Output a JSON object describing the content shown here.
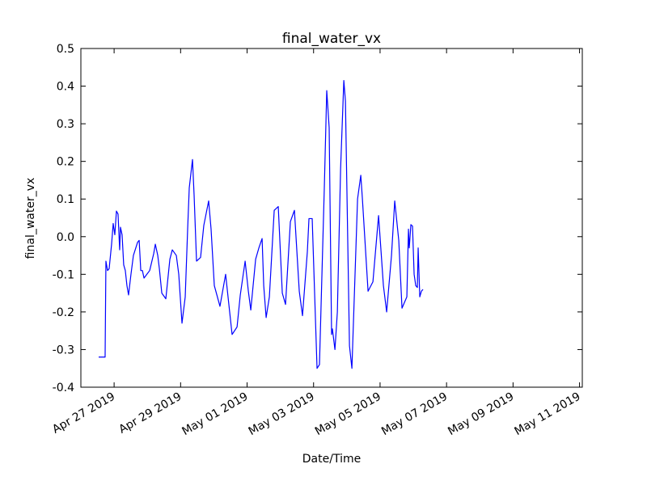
{
  "chart_data": {
    "type": "line",
    "title": "final_water_vx",
    "xlabel": "Date/Time",
    "ylabel": "final_water_vx",
    "color": "#0000ff",
    "x": [
      "2019-04-26 12:50",
      "2019-04-26 17:30",
      "2019-04-26 18:05",
      "2019-04-26 19:15",
      "2019-04-26 20:25",
      "2019-04-26 22:10",
      "2019-04-26 23:20",
      "2019-04-27 00:30",
      "2019-04-27 01:40",
      "2019-04-27 02:50",
      "2019-04-27 04:00",
      "2019-04-27 04:35",
      "2019-04-27 05:45",
      "2019-04-27 06:55",
      "2019-04-27 08:05",
      "2019-04-27 09:15",
      "2019-04-27 10:25",
      "2019-04-27 12:10",
      "2019-04-27 13:55",
      "2019-04-27 16:55",
      "2019-04-27 18:05",
      "2019-04-27 19:15",
      "2019-04-27 20:25",
      "2019-04-27 21:35",
      "2019-04-28 01:40",
      "2019-04-28 04:35",
      "2019-04-28 05:45",
      "2019-04-28 07:30",
      "2019-04-28 08:40",
      "2019-04-28 10:25",
      "2019-04-28 13:20",
      "2019-04-28 16:15",
      "2019-04-28 18:00",
      "2019-04-28 20:55",
      "2019-04-28 22:40",
      "2019-04-29 01:00",
      "2019-04-29 03:20",
      "2019-04-29 05:05",
      "2019-04-29 06:15",
      "2019-04-29 08:35",
      "2019-04-29 09:45",
      "2019-04-29 11:30",
      "2019-04-29 14:25",
      "2019-04-29 16:45",
      "2019-04-29 20:15",
      "2019-04-29 22:00",
      "2019-04-30 00:20",
      "2019-04-30 04:25",
      "2019-04-30 08:30",
      "2019-04-30 10:50",
      "2019-04-30 13:10",
      "2019-04-30 16:45",
      "2019-04-30 19:05",
      "2019-04-30 22:35",
      "2019-05-01 00:55",
      "2019-05-01 02:40",
      "2019-05-01 06:10",
      "2019-05-01 08:30",
      "2019-05-01 10:50",
      "2019-05-01 12:00",
      "2019-05-01 13:45",
      "2019-05-01 16:05",
      "2019-05-01 19:35",
      "2019-05-01 22:30",
      "2019-05-02 01:25",
      "2019-05-02 03:45",
      "2019-05-02 07:15",
      "2019-05-02 10:10",
      "2019-05-02 13:40",
      "2019-05-02 16:00",
      "2019-05-02 19:30",
      "2019-05-02 20:40",
      "2019-05-02 23:00",
      "2019-05-03 02:30",
      "2019-05-03 04:15",
      "2019-05-03 07:45",
      "2019-05-03 09:30",
      "2019-05-03 11:15",
      "2019-05-03 13:00",
      "2019-05-03 13:35",
      "2019-05-03 15:25",
      "2019-05-03 17:10",
      "2019-05-03 19:30",
      "2019-05-03 21:50",
      "2019-05-03 23:00",
      "2019-05-04 01:55",
      "2019-05-04 03:40",
      "2019-05-04 07:45",
      "2019-05-04 10:05",
      "2019-05-04 11:15",
      "2019-05-04 15:20",
      "2019-05-04 18:50",
      "2019-05-04 22:55",
      "2019-05-05 02:25",
      "2019-05-05 04:45",
      "2019-05-05 08:15",
      "2019-05-05 10:35",
      "2019-05-05 13:30",
      "2019-05-05 15:50",
      "2019-05-05 19:20",
      "2019-05-05 20:30",
      "2019-05-05 21:05",
      "2019-05-05 22:15",
      "2019-05-05 23:25",
      "2019-05-06 00:35",
      "2019-05-06 01:45",
      "2019-05-06 02:55",
      "2019-05-06 03:30",
      "2019-05-06 04:40",
      "2019-05-06 05:50",
      "2019-05-06 07:00"
    ],
    "values": [
      -0.32,
      -0.32,
      -0.065,
      -0.09,
      -0.085,
      -0.02,
      0.035,
      0.005,
      0.068,
      0.06,
      -0.035,
      0.025,
      0.005,
      -0.075,
      -0.09,
      -0.13,
      -0.155,
      -0.1,
      -0.05,
      -0.015,
      -0.01,
      -0.09,
      -0.09,
      -0.11,
      -0.09,
      -0.045,
      -0.02,
      -0.05,
      -0.085,
      -0.15,
      -0.165,
      -0.06,
      -0.035,
      -0.05,
      -0.1,
      -0.23,
      -0.16,
      0.02,
      0.13,
      0.205,
      0.11,
      -0.065,
      -0.055,
      0.03,
      0.095,
      0.02,
      -0.13,
      -0.185,
      -0.1,
      -0.18,
      -0.26,
      -0.24,
      -0.155,
      -0.065,
      -0.145,
      -0.195,
      -0.06,
      -0.03,
      -0.005,
      -0.13,
      -0.215,
      -0.16,
      0.07,
      0.08,
      -0.15,
      -0.18,
      0.04,
      0.07,
      -0.145,
      -0.21,
      -0.04,
      0.048,
      0.048,
      -0.35,
      -0.34,
      0.13,
      0.388,
      0.29,
      -0.26,
      -0.245,
      -0.3,
      -0.2,
      0.18,
      0.415,
      0.36,
      -0.29,
      -0.35,
      0.1,
      0.163,
      0.1,
      -0.145,
      -0.12,
      0.056,
      -0.13,
      -0.2,
      -0.05,
      0.095,
      -0.01,
      -0.19,
      -0.16,
      0.02,
      -0.03,
      0.032,
      0.028,
      -0.1,
      -0.13,
      -0.135,
      -0.03,
      -0.16,
      -0.145,
      -0.14
    ],
    "xlim": [
      "2019-04-26 00:00",
      "2019-05-11 02:00"
    ],
    "xticks": [
      {
        "value": "2019-04-27 00:00",
        "label": "Apr 27 2019"
      },
      {
        "value": "2019-04-29 00:00",
        "label": "Apr 29 2019"
      },
      {
        "value": "2019-05-01 00:00",
        "label": "May 01 2019"
      },
      {
        "value": "2019-05-03 00:00",
        "label": "May 03 2019"
      },
      {
        "value": "2019-05-05 00:00",
        "label": "May 05 2019"
      },
      {
        "value": "2019-05-07 00:00",
        "label": "May 07 2019"
      },
      {
        "value": "2019-05-09 00:00",
        "label": "May 09 2019"
      },
      {
        "value": "2019-05-11 00:00",
        "label": "May 11 2019"
      }
    ],
    "ylim": [
      -0.4,
      0.5
    ],
    "yticks": [
      -0.4,
      -0.3,
      -0.2,
      -0.1,
      {
        "value": 0,
        "label": "0.0"
      },
      0.1,
      0.2,
      0.3,
      0.4,
      0.5
    ],
    "grid": false
  }
}
